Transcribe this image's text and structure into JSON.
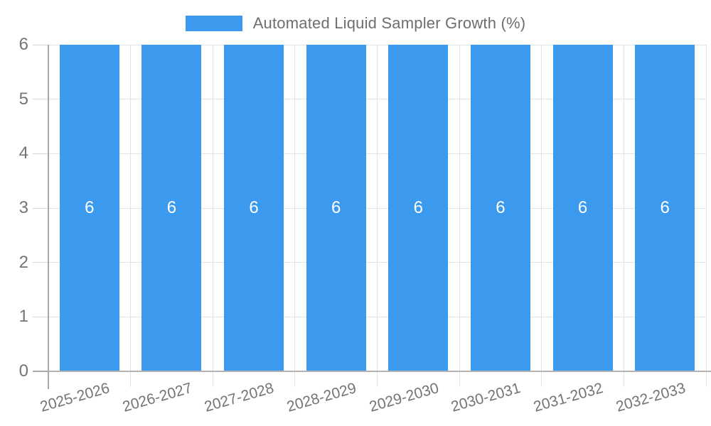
{
  "legend": {
    "label": "Automated Liquid Sampler Growth (%)",
    "swatch_color": "#3b99ee"
  },
  "chart_data": {
    "type": "bar",
    "title": "Automated Liquid Sampler Growth (%)",
    "categories": [
      "2025-2026",
      "2026-2027",
      "2027-2028",
      "2028-2029",
      "2029-2030",
      "2030-2031",
      "2031-2032",
      "2032-2033"
    ],
    "values": [
      6,
      6,
      6,
      6,
      6,
      6,
      6,
      6
    ],
    "bar_value_labels": [
      "6",
      "6",
      "6",
      "6",
      "6",
      "6",
      "6",
      "6"
    ],
    "xlabel": "",
    "ylabel": "",
    "ylim": [
      0,
      6
    ],
    "yticks": [
      0,
      1,
      2,
      3,
      4,
      5,
      6
    ],
    "grid": true,
    "legend_position": "top-center",
    "colors": {
      "bar": "#3b99ee",
      "axis_line": "#a8a8a8",
      "gridline": "#e3e3e3",
      "tick_label": "#757575",
      "legend_text": "#6e6e6e",
      "value_label": "#ffffff"
    }
  }
}
